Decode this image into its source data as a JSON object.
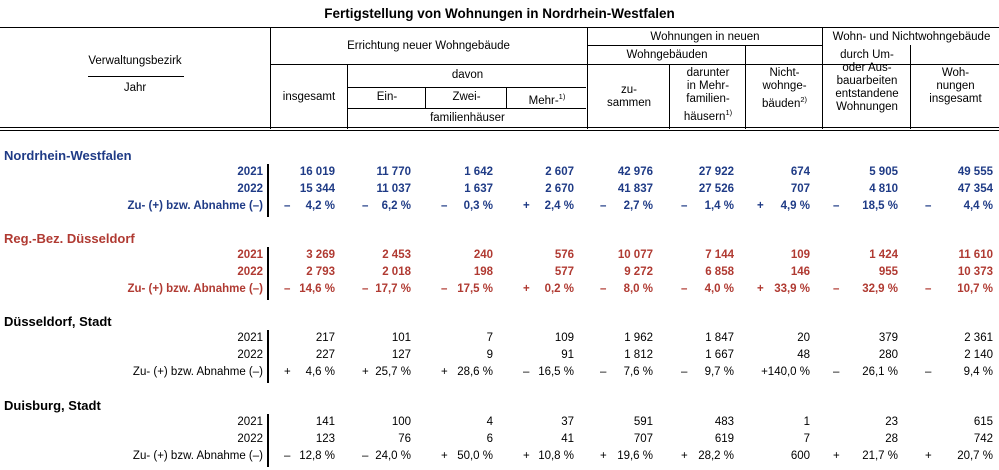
{
  "title": "Fertigstellung von Wohnungen in Nordrhein-Westfalen",
  "header": {
    "verwaltungsbezirk": "Verwaltungsbezirk",
    "jahr": "Jahr",
    "errichtung": "Errichtung neuer Wohngebäude",
    "insgesamt": "insgesamt",
    "davon": "davon",
    "ein": "Ein-",
    "zwei": "Zwei-",
    "mehr": "Mehr-",
    "mehr_note": "1)",
    "familienhaeuser": "familienhäuser",
    "wohnungen_in_neuen": "Wohnungen in neuen",
    "wohngebaeuden": "Wohngebäuden",
    "zusammen_1": "zu-",
    "zusammen_2": "sammen",
    "darunter_1": "darunter",
    "darunter_2": "in Mehr-",
    "darunter_3": "familien-",
    "darunter_4": "häusern",
    "darunter_note": "1)",
    "nicht_1": "Nicht-",
    "nicht_2": "wohnge-",
    "nicht_3": "bäuden",
    "nicht_note": "2)",
    "wohn_nicht": "Wohn- und Nichtwohngebäude",
    "durch_1": "durch Um-",
    "durch_2": "oder Aus-",
    "durch_3": "bauarbeiten",
    "durch_4": "entstandene",
    "durch_5": "Wohnungen",
    "wohnungen_ins_1": "Woh-",
    "wohnungen_ins_2": "nungen",
    "wohnungen_ins_3": "insgesamt"
  },
  "sections": [
    {
      "name": "Nordrhein-Westfalen",
      "style": "blue",
      "rows": [
        {
          "label": "2021",
          "cells": [
            "16 019",
            "11 770",
            "1 642",
            "2 607",
            "42 976",
            "27 922",
            "674",
            "5 905",
            "49 555"
          ]
        },
        {
          "label": "2022",
          "cells": [
            "15 344",
            "11 037",
            "1 637",
            "2 670",
            "41 837",
            "27 526",
            "707",
            "4 810",
            "47 354"
          ]
        },
        {
          "label": "Zu- (+) bzw. Abnahme (–)",
          "signs": [
            "–",
            "–",
            "–",
            "+",
            "–",
            "–",
            "+",
            "–",
            "–"
          ],
          "cells": [
            "4,2 %",
            "6,2 %",
            "0,3 %",
            "2,4 %",
            "2,7 %",
            "1,4 %",
            "4,9 %",
            "18,5 %",
            "4,4 %"
          ]
        }
      ]
    },
    {
      "name": "Reg.-Bez. Düsseldorf",
      "style": "red",
      "rows": [
        {
          "label": "2021",
          "cells": [
            "3 269",
            "2 453",
            "240",
            "576",
            "10 077",
            "7 144",
            "109",
            "1 424",
            "11 610"
          ]
        },
        {
          "label": "2022",
          "cells": [
            "2 793",
            "2 018",
            "198",
            "577",
            "9 272",
            "6 858",
            "146",
            "955",
            "10 373"
          ]
        },
        {
          "label": "Zu- (+) bzw. Abnahme (–)",
          "signs": [
            "–",
            "–",
            "–",
            "+",
            "–",
            "–",
            "+",
            "–",
            "–"
          ],
          "cells": [
            "14,6 %",
            "17,7 %",
            "17,5 %",
            "0,2 %",
            "8,0 %",
            "4,0 %",
            "33,9 %",
            "32,9 %",
            "10,7 %"
          ]
        }
      ]
    },
    {
      "name": "Düsseldorf, Stadt",
      "style": "black",
      "rows": [
        {
          "label": "2021",
          "cells": [
            "217",
            "101",
            "7",
            "109",
            "1 962",
            "1 847",
            "20",
            "379",
            "2 361"
          ]
        },
        {
          "label": "2022",
          "cells": [
            "227",
            "127",
            "9",
            "91",
            "1 812",
            "1 667",
            "48",
            "280",
            "2 140"
          ]
        },
        {
          "label": "Zu- (+) bzw. Abnahme (–)",
          "signs": [
            "+",
            "+",
            "+",
            "–",
            "–",
            "–",
            "",
            "–",
            "–"
          ],
          "cells": [
            "4,6 %",
            "25,7 %",
            "28,6 %",
            "16,5 %",
            "7,6 %",
            "9,7 %",
            "+140,0 %",
            "26,1 %",
            "9,4 %"
          ]
        }
      ]
    },
    {
      "name": "Duisburg, Stadt",
      "style": "black",
      "rows": [
        {
          "label": "2021",
          "cells": [
            "141",
            "100",
            "4",
            "37",
            "591",
            "483",
            "1",
            "23",
            "615"
          ]
        },
        {
          "label": "2022",
          "cells": [
            "123",
            "76",
            "6",
            "41",
            "707",
            "619",
            "7",
            "28",
            "742"
          ]
        },
        {
          "label": "Zu- (+) bzw. Abnahme (–)",
          "signs": [
            "–",
            "–",
            "+",
            "+",
            "+",
            "+",
            "",
            "+",
            "+"
          ],
          "cells": [
            "12,8 %",
            "24,0 %",
            "50,0 %",
            "10,8 %",
            "19,6 %",
            "28,2 %",
            "600",
            "21,7 %",
            "20,7 %"
          ]
        }
      ]
    }
  ]
}
